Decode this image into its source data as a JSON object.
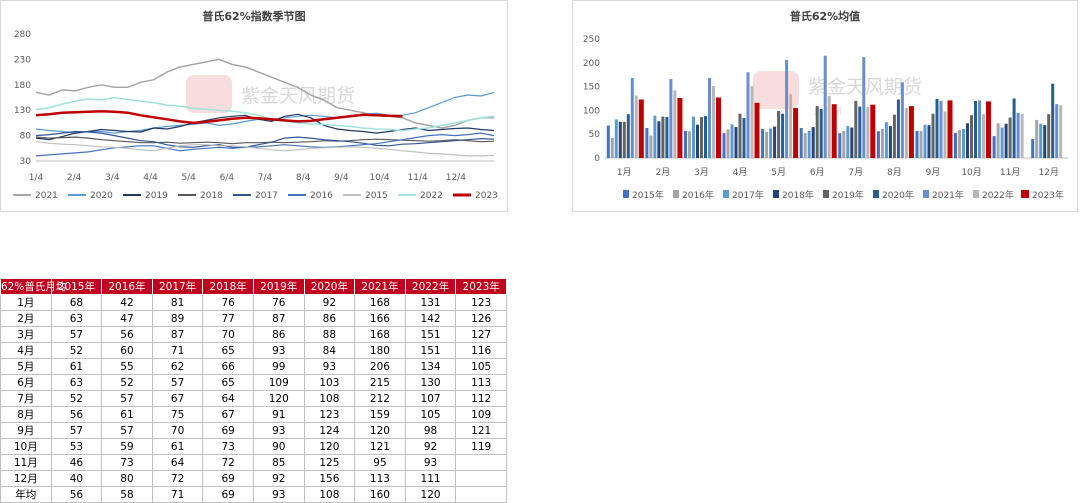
{
  "chart_data": [
    {
      "type": "line",
      "title": "普氏62%指数季节图",
      "x_ticks": [
        "1/4",
        "2/4",
        "3/4",
        "4/4",
        "5/4",
        "6/4",
        "7/4",
        "8/4",
        "9/4",
        "10/4",
        "11/4",
        "12/4"
      ],
      "y_ticks": [
        30,
        80,
        130,
        180,
        230,
        280
      ],
      "ylim": [
        30,
        280
      ],
      "legend_position": "bottom",
      "series": [
        {
          "name": "2021",
          "color": "#a6a6a6",
          "width": 1.5,
          "values": [
            165,
            160,
            170,
            168,
            175,
            180,
            175,
            175,
            185,
            190,
            205,
            215,
            220,
            225,
            230,
            220,
            215,
            205,
            195,
            185,
            175,
            160,
            150,
            135,
            130,
            125,
            120,
            118,
            115,
            105,
            100,
            95,
            100,
            110,
            115,
            115
          ]
        },
        {
          "name": "2020",
          "color": "#5b9bd5",
          "width": 1.2,
          "values": [
            93,
            90,
            88,
            85,
            88,
            88,
            85,
            88,
            90,
            95,
            98,
            100,
            102,
            105,
            100,
            103,
            108,
            112,
            112,
            115,
            118,
            120,
            118,
            115,
            118,
            122,
            124,
            120,
            120,
            125,
            135,
            145,
            155,
            160,
            158,
            165
          ]
        },
        {
          "name": "2019",
          "color": "#1f3864",
          "width": 1.2,
          "values": [
            75,
            72,
            78,
            85,
            88,
            92,
            90,
            88,
            87,
            95,
            93,
            98,
            105,
            110,
            115,
            118,
            120,
            112,
            108,
            118,
            122,
            115,
            100,
            93,
            90,
            88,
            85,
            88,
            92,
            95,
            90,
            92,
            94,
            95,
            92,
            90
          ]
        },
        {
          "name": "2018",
          "color": "#595959",
          "width": 1.2,
          "values": [
            77,
            75,
            76,
            77,
            75,
            72,
            70,
            68,
            66,
            66,
            67,
            65,
            66,
            67,
            66,
            64,
            66,
            66,
            67,
            66,
            67,
            68,
            70,
            69,
            70,
            72,
            73,
            72,
            71,
            70,
            69,
            70,
            72,
            70,
            68,
            69
          ]
        },
        {
          "name": "2017",
          "color": "#2f5597",
          "width": 1.2,
          "values": [
            80,
            82,
            85,
            88,
            87,
            85,
            80,
            75,
            70,
            68,
            62,
            58,
            57,
            60,
            62,
            57,
            57,
            62,
            67,
            75,
            77,
            75,
            72,
            70,
            68,
            65,
            61,
            60,
            63,
            64,
            66,
            68,
            70,
            72,
            74,
            73
          ]
        },
        {
          "name": "2016",
          "color": "#4472c4",
          "width": 1.2,
          "values": [
            40,
            42,
            44,
            46,
            48,
            52,
            56,
            58,
            60,
            60,
            55,
            50,
            53,
            55,
            57,
            55,
            57,
            58,
            60,
            62,
            60,
            58,
            57,
            58,
            60,
            62,
            64,
            68,
            72,
            76,
            80,
            82,
            80,
            82,
            85,
            80
          ]
        },
        {
          "name": "2015",
          "color": "#bfbfbf",
          "width": 1.2,
          "values": [
            68,
            65,
            63,
            62,
            60,
            58,
            57,
            55,
            52,
            50,
            55,
            60,
            62,
            62,
            60,
            60,
            58,
            55,
            52,
            50,
            52,
            55,
            56,
            57,
            58,
            57,
            55,
            53,
            50,
            48,
            45,
            44,
            42,
            40,
            40,
            41
          ]
        },
        {
          "name": "2022",
          "color": "#9fe3db",
          "width": 1.5,
          "values": [
            131,
            135,
            142,
            148,
            152,
            150,
            155,
            151,
            148,
            145,
            140,
            138,
            134,
            132,
            130,
            128,
            125,
            120,
            112,
            108,
            105,
            103,
            102,
            100,
            98,
            95,
            93,
            92,
            90,
            93,
            95,
            100,
            105,
            110,
            115,
            118
          ]
        },
        {
          "name": "2023",
          "color": "#c00000",
          "width": 2.5,
          "n": 29,
          "values": [
            120,
            122,
            125,
            126,
            127,
            128,
            127,
            125,
            120,
            116,
            112,
            108,
            105,
            107,
            110,
            113,
            115,
            114,
            112,
            110,
            108,
            109,
            112,
            115,
            118,
            121,
            120,
            119,
            118
          ]
        }
      ]
    },
    {
      "type": "bar",
      "title": "普氏62%均值",
      "categories": [
        "1月",
        "2月",
        "3月",
        "4月",
        "5月",
        "6月",
        "7月",
        "8月",
        "9月",
        "10月",
        "11月",
        "12月"
      ],
      "y_ticks": [
        0,
        50,
        100,
        150,
        200,
        250
      ],
      "ylim": [
        0,
        250
      ],
      "legend_position": "bottom",
      "series": [
        {
          "name": "2015年",
          "color": "#4472c4",
          "values": [
            68,
            63,
            57,
            52,
            61,
            63,
            52,
            56,
            57,
            53,
            46,
            40
          ]
        },
        {
          "name": "2016年",
          "color": "#a5a5a5",
          "values": [
            42,
            47,
            56,
            60,
            55,
            52,
            57,
            61,
            57,
            59,
            73,
            80
          ]
        },
        {
          "name": "2017年",
          "color": "#5b9bd5",
          "values": [
            81,
            89,
            87,
            71,
            62,
            57,
            67,
            75,
            70,
            61,
            64,
            72
          ]
        },
        {
          "name": "2018年",
          "color": "#264478",
          "values": [
            76,
            77,
            70,
            65,
            66,
            65,
            64,
            67,
            69,
            73,
            72,
            69
          ]
        },
        {
          "name": "2019年",
          "color": "#636363",
          "values": [
            76,
            87,
            86,
            93,
            99,
            109,
            120,
            91,
            93,
            90,
            85,
            92
          ]
        },
        {
          "name": "2020年",
          "color": "#255e91",
          "values": [
            92,
            86,
            88,
            84,
            93,
            103,
            108,
            123,
            124,
            120,
            125,
            156
          ]
        },
        {
          "name": "2021年",
          "color": "#698ed0",
          "values": [
            168,
            166,
            168,
            180,
            206,
            215,
            212,
            159,
            120,
            121,
            95,
            113
          ]
        },
        {
          "name": "2022年",
          "color": "#b7b7b7",
          "values": [
            131,
            142,
            151,
            151,
            134,
            130,
            107,
            105,
            98,
            92,
            93,
            111
          ]
        },
        {
          "name": "2023年",
          "color": "#c00000",
          "values": [
            123,
            126,
            127,
            116,
            105,
            113,
            112,
            109,
            121,
            119,
            null,
            null
          ]
        }
      ]
    }
  ],
  "watermark": {
    "brand": "紫金天风期货",
    "sub": "立 产 研"
  },
  "table": {
    "header": [
      "62%普氏月均",
      "2015年",
      "2016年",
      "2017年",
      "2018年",
      "2019年",
      "2020年",
      "2021年",
      "2022年",
      "2023年"
    ],
    "rows": [
      [
        "1月",
        "68",
        "42",
        "81",
        "76",
        "76",
        "92",
        "168",
        "131",
        "123"
      ],
      [
        "2月",
        "63",
        "47",
        "89",
        "77",
        "87",
        "86",
        "166",
        "142",
        "126"
      ],
      [
        "3月",
        "57",
        "56",
        "87",
        "70",
        "86",
        "88",
        "168",
        "151",
        "127"
      ],
      [
        "4月",
        "52",
        "60",
        "71",
        "65",
        "93",
        "84",
        "180",
        "151",
        "116"
      ],
      [
        "5月",
        "61",
        "55",
        "62",
        "66",
        "99",
        "93",
        "206",
        "134",
        "105"
      ],
      [
        "6月",
        "63",
        "52",
        "57",
        "65",
        "109",
        "103",
        "215",
        "130",
        "113"
      ],
      [
        "7月",
        "52",
        "57",
        "67",
        "64",
        "120",
        "108",
        "212",
        "107",
        "112"
      ],
      [
        "8月",
        "56",
        "61",
        "75",
        "67",
        "91",
        "123",
        "159",
        "105",
        "109"
      ],
      [
        "9月",
        "57",
        "57",
        "70",
        "69",
        "93",
        "124",
        "120",
        "98",
        "121"
      ],
      [
        "10月",
        "53",
        "59",
        "61",
        "73",
        "90",
        "120",
        "121",
        "92",
        "119"
      ],
      [
        "11月",
        "46",
        "73",
        "64",
        "72",
        "85",
        "125",
        "95",
        "93",
        ""
      ],
      [
        "12月",
        "40",
        "80",
        "72",
        "69",
        "92",
        "156",
        "113",
        "111",
        ""
      ],
      [
        "年均",
        "56",
        "58",
        "71",
        "69",
        "93",
        "108",
        "160",
        "120",
        ""
      ]
    ]
  }
}
